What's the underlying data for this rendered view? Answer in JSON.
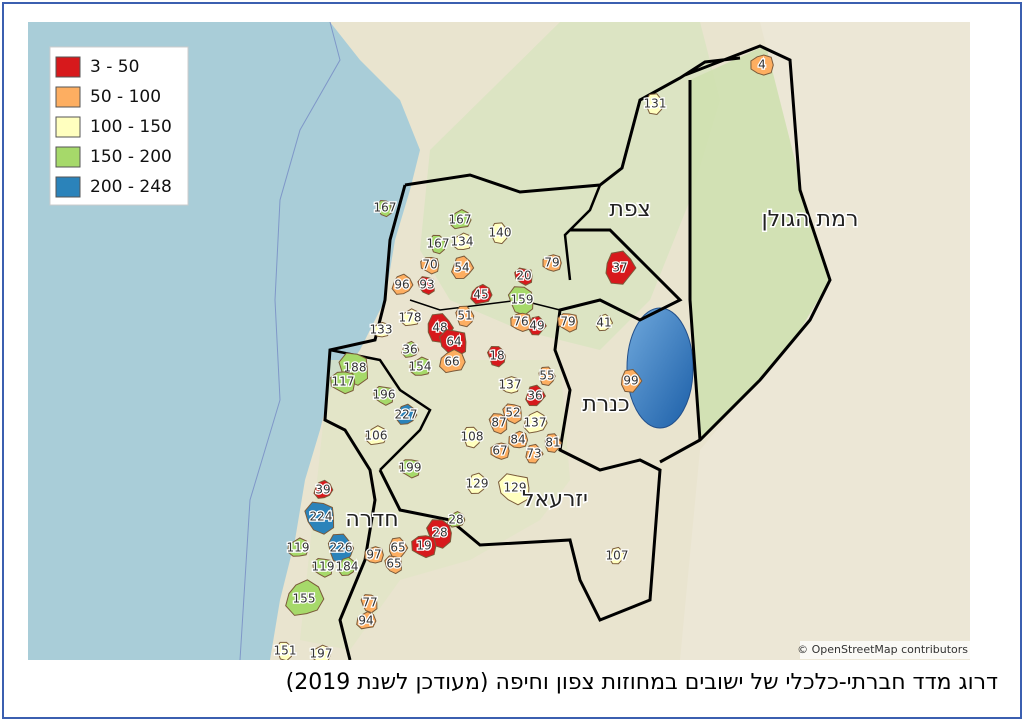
{
  "legend": [
    {
      "label": "3 - 50",
      "color": "#d7191c"
    },
    {
      "label": "50 - 100",
      "color": "#fdae61"
    },
    {
      "label": "100 - 150",
      "color": "#ffffbf"
    },
    {
      "label": "150 - 200",
      "color": "#a6d96a"
    },
    {
      "label": "200 - 248",
      "color": "#2b83ba"
    }
  ],
  "regions": [
    "צפת",
    "רמת הגולן",
    "כנרת",
    "יזרעאל",
    "חדרה"
  ],
  "settlements": [
    "167",
    "167",
    "167",
    "134",
    "140",
    "79",
    "37",
    "70",
    "54",
    "20",
    "96",
    "93",
    "45",
    "159",
    "178",
    "51",
    "133",
    "48",
    "76",
    "49",
    "79",
    "41",
    "64",
    "36",
    "188",
    "66",
    "18",
    "154",
    "55",
    "137",
    "99",
    "117",
    "36",
    "196",
    "227",
    "52",
    "137",
    "87",
    "106",
    "108",
    "84",
    "81",
    "67",
    "73",
    "199",
    "129",
    "129",
    "39",
    "224",
    "28",
    "28",
    "119",
    "226",
    "97",
    "65",
    "19",
    "107",
    "119",
    "184",
    "65",
    "155",
    "77",
    "94",
    "151",
    "197",
    "131",
    "4"
  ],
  "attribution": "© OpenStreetMap contributors",
  "caption": "דרוג מדד חברתי-כלכלי של ישובים במחוזות צפון וחיפה (מעודכן לשנת 2019)"
}
